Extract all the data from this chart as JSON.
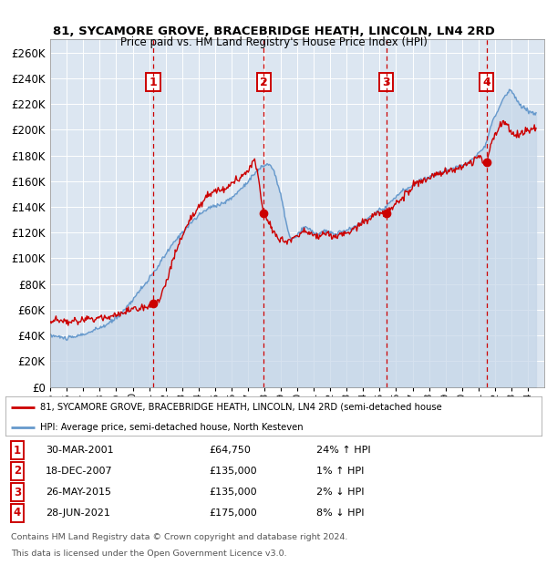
{
  "title1": "81, SYCAMORE GROVE, BRACEBRIDGE HEATH, LINCOLN, LN4 2RD",
  "title2": "Price paid vs. HM Land Registry's House Price Index (HPI)",
  "ylim": [
    0,
    270000
  ],
  "yticks": [
    0,
    20000,
    40000,
    60000,
    80000,
    100000,
    120000,
    140000,
    160000,
    180000,
    200000,
    220000,
    240000,
    260000
  ],
  "ytick_labels": [
    "£0",
    "£20K",
    "£40K",
    "£60K",
    "£80K",
    "£100K",
    "£120K",
    "£140K",
    "£160K",
    "£180K",
    "£200K",
    "£220K",
    "£240K",
    "£260K"
  ],
  "xmin": 1995.0,
  "xmax": 2025.0,
  "transactions": [
    {
      "num": 1,
      "year": 2001.25,
      "price": 64750,
      "date": "30-MAR-2001",
      "pct": "24%",
      "dir": "↑"
    },
    {
      "num": 2,
      "year": 2007.97,
      "price": 135000,
      "date": "18-DEC-2007",
      "pct": "1%",
      "dir": "↑"
    },
    {
      "num": 3,
      "year": 2015.4,
      "price": 135000,
      "date": "26-MAY-2015",
      "pct": "2%",
      "dir": "↓"
    },
    {
      "num": 4,
      "year": 2021.49,
      "price": 175000,
      "date": "28-JUN-2021",
      "pct": "8%",
      "dir": "↓"
    }
  ],
  "legend_line1": "81, SYCAMORE GROVE, BRACEBRIDGE HEATH, LINCOLN, LN4 2RD (semi-detached house",
  "legend_line2": "HPI: Average price, semi-detached house, North Kesteven",
  "footer1": "Contains HM Land Registry data © Crown copyright and database right 2024.",
  "footer2": "This data is licensed under the Open Government Licence v3.0.",
  "bg_color": "#dce6f1",
  "grid_color": "#ffffff",
  "red_color": "#cc0000",
  "blue_color": "#6699cc",
  "blue_fill": "#c5d5e8"
}
